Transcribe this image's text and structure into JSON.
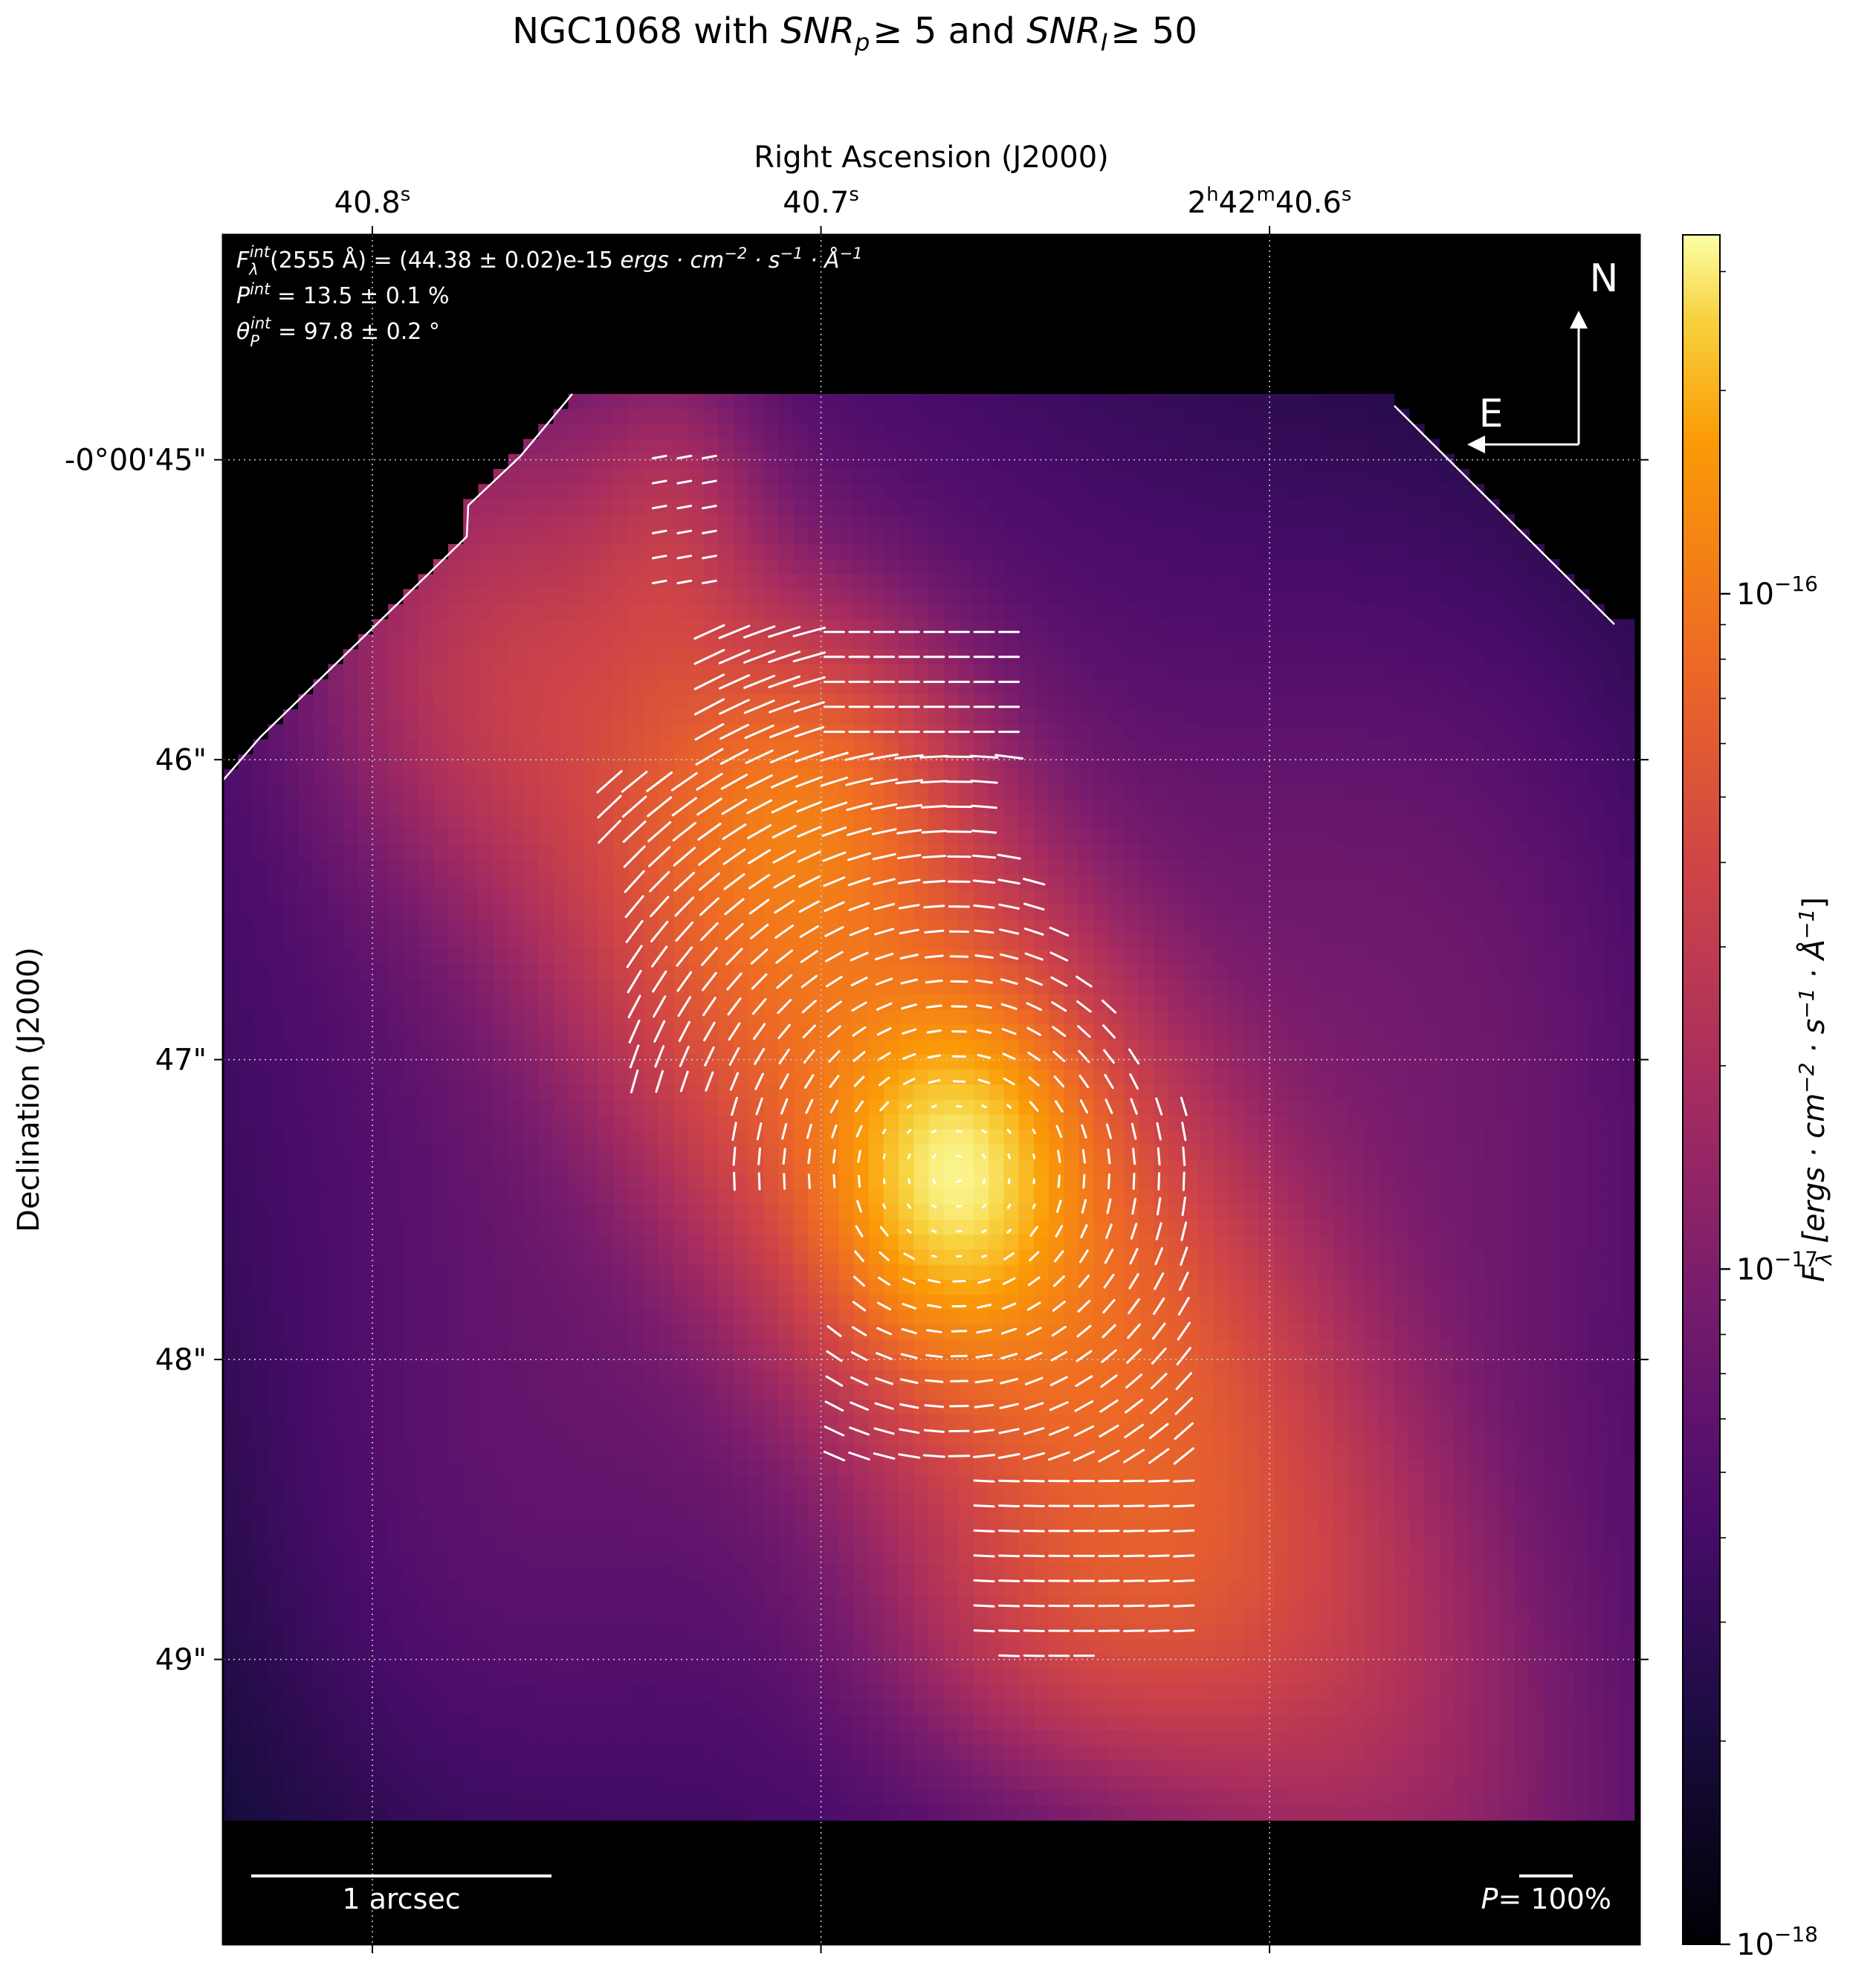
{
  "chart_data": {
    "type": "heatmap",
    "title_parts": [
      "NGC1068 with ",
      "SNR",
      "p",
      "≥ 5 and ",
      "SNR",
      "I",
      "≥ 50"
    ],
    "xlabel": "Right Ascension (J2000)",
    "ylabel": "Declination (J2000)",
    "x_ticks": [
      {
        "ra_s": 40.8,
        "label": "40.8",
        "sup": "s"
      },
      {
        "ra_s": 40.7,
        "label": "40.7",
        "sup": "s"
      },
      {
        "ra_s": 40.6,
        "label_parts": [
          "2",
          "h",
          "42",
          "m",
          "40.6",
          "s"
        ]
      }
    ],
    "y_ticks": [
      {
        "dec_arcsec": -45,
        "label": "-0°00'45\""
      },
      {
        "dec_arcsec": -46,
        "label": "46\""
      },
      {
        "dec_arcsec": -47,
        "label": "47\""
      },
      {
        "dec_arcsec": -48,
        "label": "48\""
      },
      {
        "dec_arcsec": -49,
        "label": "49\""
      }
    ],
    "xlim_ra_s": [
      40.8333,
      40.5175
    ],
    "ylim_dec_arcsec": [
      -44.25,
      -49.95
    ],
    "grid": true,
    "colorbar": {
      "label": "F_λ [ergs · cm⁻² · s⁻¹ · Å⁻¹]",
      "label_parts": [
        "F",
        "λ",
        " [ergs · cm",
        "−2",
        " · s",
        "−1",
        " · Å",
        "−1",
        "]"
      ],
      "scale": "log",
      "colormap": "inferno",
      "range": [
        1e-18,
        3.4e-16
      ],
      "major_ticks": [
        {
          "value": 1e-18,
          "base": "10",
          "exp": "−18"
        },
        {
          "value": 1e-17,
          "base": "10",
          "exp": "−17"
        },
        {
          "value": 1e-16,
          "base": "10",
          "exp": "−16"
        }
      ]
    },
    "annotations": {
      "flux_parts": [
        "F",
        "λ",
        "int",
        "(2555 Å) = (44.38 ± 0.02)e-15 ",
        "ergs · cm",
        "−2",
        " · s",
        "−1",
        " · Å",
        "−1"
      ],
      "pol_parts": [
        "P",
        "int",
        " = 13.5 ± 0.1 %"
      ],
      "angle_parts": [
        "θ",
        "P",
        "int",
        " = 97.8 ± 0.2 °"
      ]
    },
    "compass": {
      "north": "N",
      "east": "E"
    },
    "scale_bar": {
      "label": "1 arcsec",
      "length_arcsec": 1.0
    },
    "pol_key": {
      "label_parts": [
        "P",
        "= 100%"
      ],
      "value_percent": 100
    },
    "nucleus": {
      "ra_s": 40.67,
      "dec_arcsec": -47.38,
      "peak_flux": 3.3e-16
    }
  },
  "colors": {
    "background": "#000000",
    "vectors": "#ffffff",
    "grid": "#c8c8c8"
  }
}
